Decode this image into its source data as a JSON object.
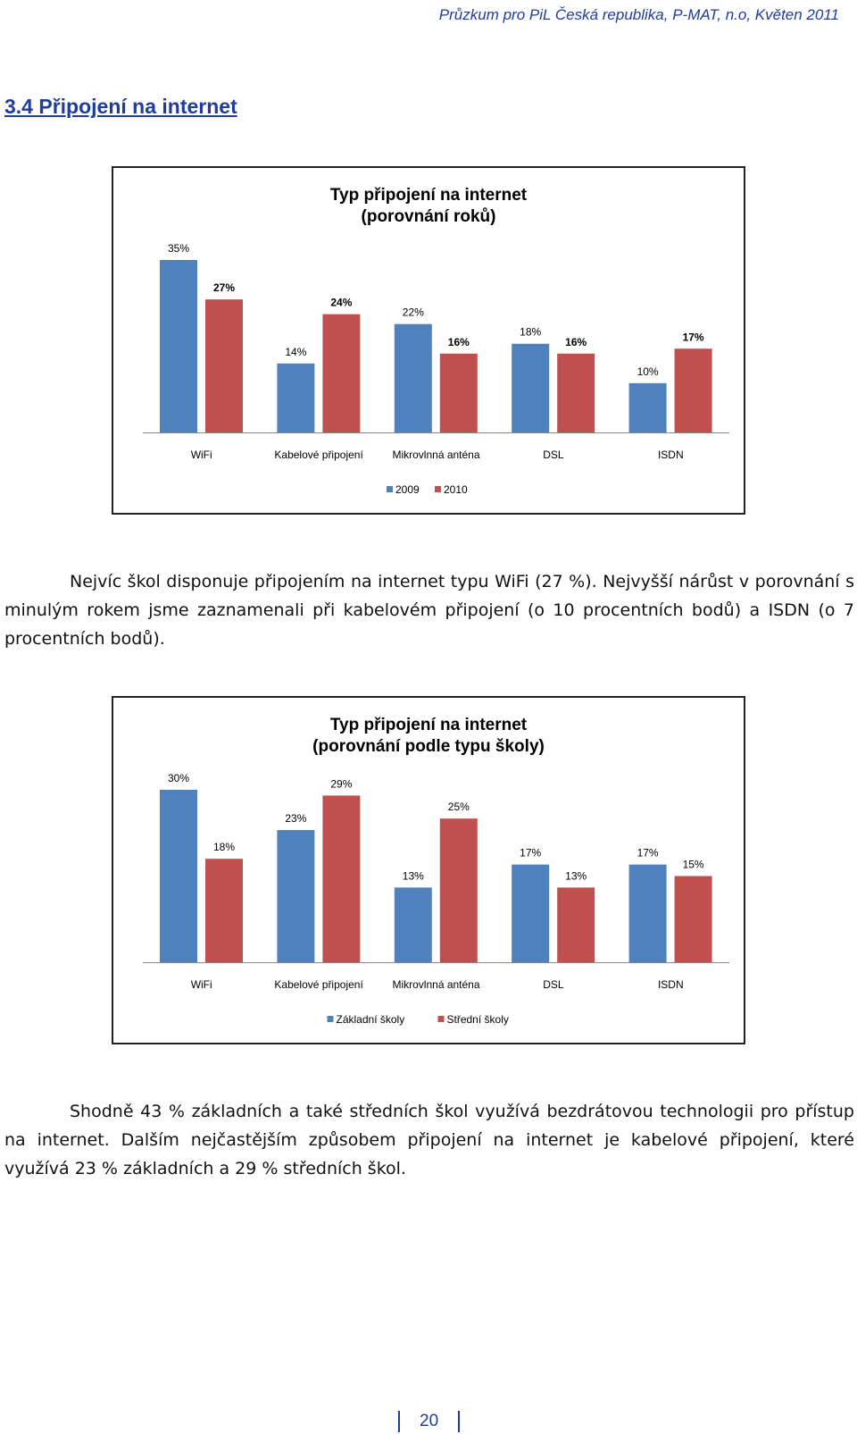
{
  "header": {
    "running_title": "Průzkum pro PiL Česká republika, P-MAT, n.o, Květen 2011"
  },
  "section": {
    "title": "3.4 Připojení na internet"
  },
  "chart_data": [
    {
      "type": "bar",
      "title": "Typ připojení na internet",
      "subtitle": "(porovnání roků)",
      "categories": [
        "WiFi",
        "Kabelové připojení",
        "Mikrovlnná anténa",
        "DSL",
        "ISDN"
      ],
      "series": [
        {
          "name": "2009",
          "color": "#4f81bd",
          "values": [
            35,
            14,
            22,
            18,
            10
          ],
          "labels": [
            "35%",
            "14%",
            "22%",
            "18%",
            "10%"
          ]
        },
        {
          "name": "2010",
          "color": "#c0504d",
          "values": [
            27,
            24,
            16,
            16,
            17
          ],
          "labels": [
            "27%",
            "24%",
            "16%",
            "16%",
            "17%"
          ]
        }
      ],
      "ylim": [
        0,
        35
      ],
      "grid": false,
      "legend": "bottom"
    },
    {
      "type": "bar",
      "title": "Typ připojení na internet",
      "subtitle": "(porovnání podle typu školy)",
      "categories": [
        "WiFi",
        "Kabelové připojení",
        "Mikrovlnná anténa",
        "DSL",
        "ISDN"
      ],
      "series": [
        {
          "name": "Základní školy",
          "color": "#4f81bd",
          "values": [
            30,
            23,
            13,
            17,
            17
          ],
          "labels": [
            "30%",
            "23%",
            "13%",
            "17%",
            "17%"
          ]
        },
        {
          "name": "Střední školy",
          "color": "#c0504d",
          "values": [
            18,
            29,
            25,
            13,
            15
          ],
          "labels": [
            "18%",
            "29%",
            "25%",
            "13%",
            "15%"
          ]
        }
      ],
      "ylim": [
        0,
        30
      ],
      "grid": false,
      "legend": "bottom"
    }
  ],
  "paragraphs": [
    "Nejvíc škol disponuje připojením na internet typu WiFi (27 %). Nejvyšší nárůst v porovnání s minulým rokem jsme zaznamenali při kabelovém připojení (o 10 procentních bodů) a ISDN (o 7 procentních bodů).",
    "Shodně 43 % základních a také středních škol využívá bezdrátovou technologii pro přístup na internet. Dalším nejčastějším způsobem připojení na internet je kabelové připojení, které využívá 23 % základních a 29 % středních škol."
  ],
  "footer": {
    "page_number": "20"
  }
}
